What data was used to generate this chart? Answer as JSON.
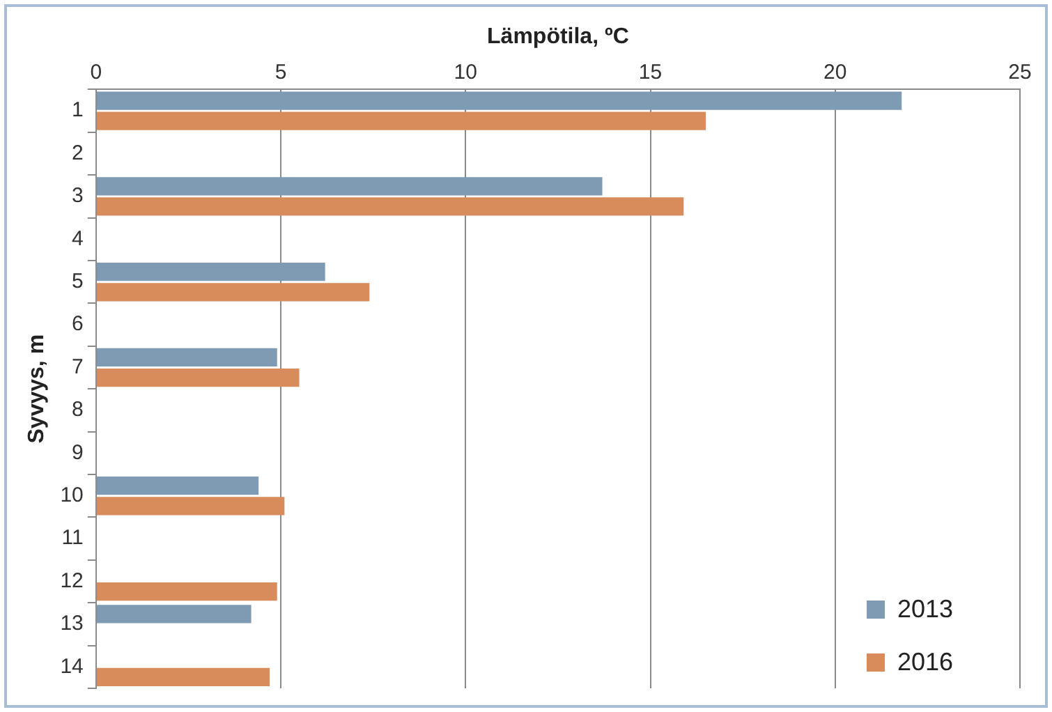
{
  "chart_data": {
    "type": "bar",
    "orientation": "horizontal",
    "xlabel": "Lämpötila, ºC",
    "ylabel": "Syvyys, m",
    "categories": [
      "1",
      "2",
      "3",
      "4",
      "5",
      "6",
      "7",
      "8",
      "9",
      "10",
      "11",
      "12",
      "13",
      "14"
    ],
    "series": [
      {
        "name": "2013",
        "color": "#7f9bb3",
        "values": [
          21.8,
          null,
          13.7,
          null,
          6.2,
          null,
          4.9,
          null,
          null,
          4.4,
          null,
          null,
          4.2,
          null
        ]
      },
      {
        "name": "2016",
        "color": "#d88c5c",
        "values": [
          16.5,
          null,
          15.9,
          null,
          7.4,
          null,
          5.5,
          null,
          null,
          5.1,
          null,
          4.9,
          null,
          4.7
        ]
      }
    ],
    "xlim": [
      0,
      25
    ],
    "xticks": [
      0,
      5,
      10,
      15,
      20,
      25
    ],
    "grid": "x",
    "legend": "bottom right"
  }
}
